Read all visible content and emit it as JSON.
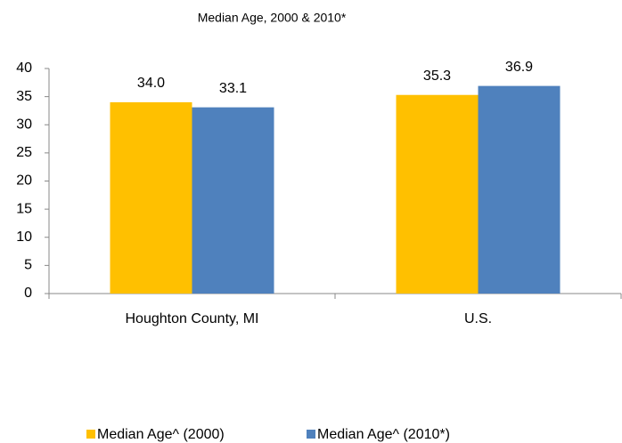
{
  "chart_data": {
    "type": "bar",
    "title": "Median Age, 2000 & 2010*",
    "categories": [
      "Houghton County, MI",
      "U.S."
    ],
    "series": [
      {
        "name": "Median Age^ (2000)",
        "color": "#ffc000",
        "values": [
          34.0,
          35.3
        ],
        "value_labels": [
          "34.0",
          "35.3"
        ]
      },
      {
        "name": "Median Age^ (2010*)",
        "color": "#4f81bd",
        "values": [
          33.1,
          36.9
        ],
        "value_labels": [
          "33.1",
          "36.9"
        ]
      }
    ],
    "ylim": [
      0,
      40
    ],
    "yticks": [
      0,
      5,
      10,
      15,
      20,
      25,
      30,
      35,
      40
    ],
    "grid": false,
    "legend": "bottom"
  }
}
